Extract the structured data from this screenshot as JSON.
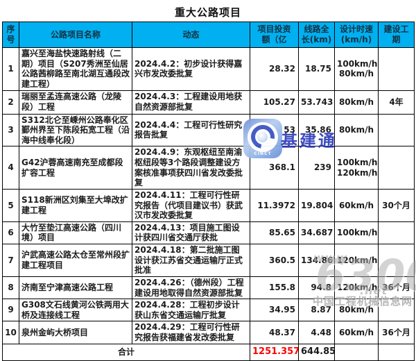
{
  "title": "重大公路项目",
  "colors": {
    "header_bg": "#00B0F0",
    "total_value": "#FF0000",
    "brand_blue": "#2434B6"
  },
  "table": {
    "headers": [
      "序\n号",
      "公路项目名称",
      "动态",
      "项目投资\n额（亿",
      "线路全\n长(km)",
      "设计时速\n(km/h)",
      "建设工\n期"
    ],
    "rows": [
      {
        "no": "1",
        "name": "嘉兴至海盐快速路射线（二期）项目（S207秀洲至仙居公路茜柳路至南北湖互通段改建工程）",
        "dynamic": "2024.4.2：初步设计获得嘉兴市发改委批复",
        "investment": "28.32",
        "length": "18.75",
        "speed": "100km/h\n80km/h",
        "period": ""
      },
      {
        "no": "2",
        "name": "瑞丽至孟连高速公路（龙陵段）工程",
        "dynamic": "2024.4.3：工程建设用地获自然资源部批复",
        "investment": "105.27",
        "length": "53.743",
        "speed": "80km/h",
        "period": "4年"
      },
      {
        "no": "3",
        "name": "S312北仑至嵊州公路奉化区鄞州界至下陈段拓宽工程（沿海中线奉化段）",
        "dynamic": "2024.4.4：工程可行性研究报告批复",
        "investment": "53",
        "length": "35.86",
        "speed": "80km/h",
        "period": ""
      },
      {
        "no": "4",
        "name": "G42沪蓉高速南充至成都段扩容工程",
        "dynamic": "2024.4.9：东观枢纽至南渝枢纽段等3个路段调整建设方案核准事项获四川省发改委批复",
        "investment": "368.1",
        "length": "239",
        "speed": "100km/h\n120km/h",
        "period": ""
      },
      {
        "no": "5",
        "name": "S118新洲区刘集至大埠改扩建工程",
        "dynamic": "2024.4.11：工程可行性研究报告（代项目建议书）获武汉市发改委批复",
        "investment": "11.3972",
        "length": "19.804",
        "speed": "60km/h",
        "period": "30个月"
      },
      {
        "no": "6",
        "name": "大竹至垫江高速公路（四川境）项目",
        "dynamic": "2024.4.13：项目施工图设计获四川省交通厅获批",
        "investment": "85.65",
        "length": "34.687",
        "speed": "100km/h",
        "period": ""
      },
      {
        "no": "7",
        "name": "沪武高速公路太仓至常州段扩建工程项目",
        "dynamic": "2024.4.18：第二批施工图设计获江苏省交通运输厅正式批准",
        "investment": "360.5",
        "length": "134.86",
        "speed": "120km/h",
        "period": ""
      },
      {
        "no": "8",
        "name": "济南至宁津高速公路工程",
        "dynamic": "2024.4.26：（德州段）工程建设用地取得自然资源部批复",
        "investment": "155.8",
        "length": "94.8",
        "speed": "120km/h",
        "period": "36个月"
      },
      {
        "no": "9",
        "name": "G308文石线黄河公铁两用大桥及连接线工程",
        "dynamic": "2024.4.28：工程初步设计获山东省交通运输厅批复",
        "investment": "34.95",
        "length": "8.87",
        "speed": "80km/h",
        "period": ""
      },
      {
        "no": "10",
        "name": "泉州金屿大桥项目",
        "dynamic": "2024.4.29：工程可行性研究报告获福建省发改委批复",
        "investment": "48.37",
        "length": "4.48",
        "speed": "60km/h",
        "period": "36个月"
      }
    ],
    "total": {
      "label": "合计",
      "investment": "1251.357",
      "length": "644.854",
      "speed": "",
      "period": ""
    }
  },
  "watermarks": {
    "logo_brand": "基建通",
    "logo_icon_text": "CINCT",
    "site_prefix": "www.",
    "site_number": "6300",
    "site_suffix": ".net",
    "site_name": "中国工程机械信息网"
  }
}
